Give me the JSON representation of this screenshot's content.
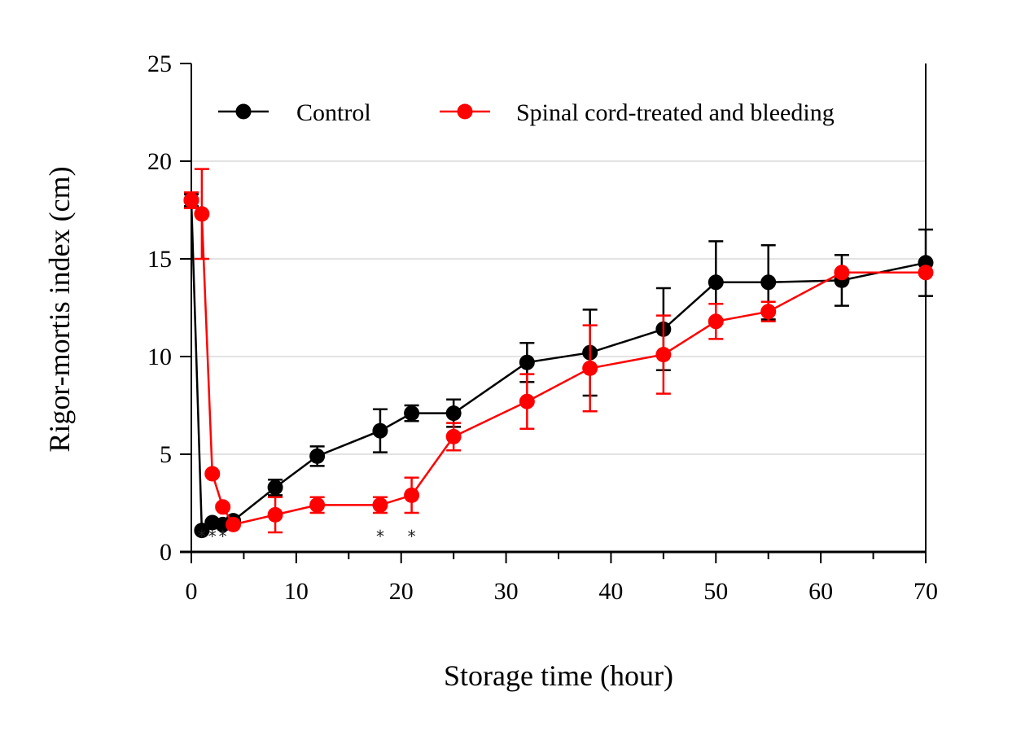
{
  "chart_data": {
    "type": "line",
    "title": "",
    "xlabel": "Storage time (hour)",
    "ylabel": "Rigor-mortis index (cm)",
    "xlim": [
      0,
      70
    ],
    "ylim": [
      0,
      25
    ],
    "xticks": [
      0,
      10,
      20,
      30,
      40,
      50,
      60,
      70
    ],
    "yticks": [
      0,
      5,
      10,
      15,
      20,
      25
    ],
    "grid": "horizontal",
    "legend_position": "top",
    "x": [
      0,
      1,
      2,
      3,
      4,
      8,
      12,
      18,
      21,
      25,
      32,
      38,
      45,
      50,
      55,
      62,
      70
    ],
    "series": [
      {
        "name": "Control",
        "color": "#000000",
        "values": [
          18.0,
          1.1,
          1.5,
          1.4,
          1.6,
          3.3,
          4.9,
          6.2,
          7.1,
          7.1,
          9.7,
          10.2,
          11.4,
          13.8,
          13.8,
          13.9,
          14.8
        ],
        "errors": [
          0.3,
          0.1,
          0.1,
          0.1,
          0.1,
          0.4,
          0.5,
          1.1,
          0.4,
          0.7,
          1.0,
          2.2,
          2.1,
          2.1,
          1.9,
          1.3,
          1.7
        ]
      },
      {
        "name": "Spinal cord-treated and bleeding",
        "color": "#ff0000",
        "values": [
          18.0,
          17.3,
          4.0,
          2.3,
          1.4,
          1.9,
          2.4,
          2.4,
          2.9,
          5.9,
          7.7,
          9.4,
          10.1,
          11.8,
          12.3,
          14.3,
          14.3
        ],
        "errors": [
          0.4,
          2.3,
          0.1,
          0.1,
          0.1,
          0.9,
          0.4,
          0.4,
          0.9,
          0.7,
          1.4,
          2.2,
          2.0,
          0.9,
          0.5,
          0.1,
          0.1
        ]
      }
    ],
    "annotations": [
      {
        "text": "*",
        "x": 1
      },
      {
        "text": "*",
        "x": 2
      },
      {
        "text": "*",
        "x": 3
      },
      {
        "text": "*",
        "x": 18
      },
      {
        "text": "*",
        "x": 21
      }
    ]
  }
}
